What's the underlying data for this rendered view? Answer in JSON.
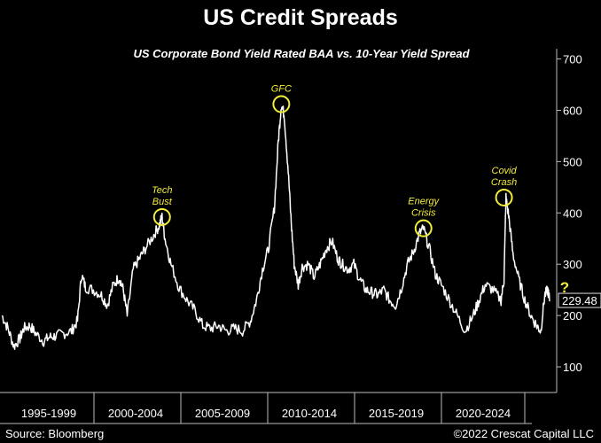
{
  "title": "US Credit Spreads",
  "subtitle": "US Corporate Bond Yield Rated BAA vs. 10-Year Yield Spread",
  "source": "Source: Bloomberg",
  "copyright": "©2022 Crescat Capital LLC",
  "chart_data": {
    "type": "line",
    "title": "US Credit Spreads",
    "subtitle": "US Corporate Bond Yield Rated BAA vs. 10-Year Yield Spread",
    "xlabel": "",
    "ylabel": "",
    "ylim": [
      50,
      720
    ],
    "xlim": [
      1994.8,
      2022.8
    ],
    "y_ticks": [
      100,
      200,
      300,
      400,
      500,
      600,
      700
    ],
    "x_period_labels": [
      "1995-1999",
      "2000-2004",
      "2005-2009",
      "2010-2014",
      "2015-2019",
      "2020-2024"
    ],
    "last_value_label": "229.48",
    "series": [
      {
        "color": "#ffffff",
        "x": [
          1994.9,
          1995.2,
          1995.5,
          1995.8,
          1996.0,
          1996.3,
          1996.6,
          1997.0,
          1997.3,
          1997.6,
          1998.0,
          1998.4,
          1998.7,
          1998.9,
          1999.1,
          1999.5,
          1999.9,
          2000.2,
          2000.5,
          2000.8,
          2001.0,
          2001.2,
          2001.5,
          2001.8,
          2002.1,
          2002.5,
          2002.8,
          2002.95,
          2003.1,
          2003.4,
          2003.8,
          2004.2,
          2004.6,
          2005.0,
          2005.4,
          2005.8,
          2006.2,
          2006.6,
          2007.0,
          2007.4,
          2007.7,
          2008.0,
          2008.3,
          2008.6,
          2008.8,
          2008.95,
          2009.1,
          2009.3,
          2009.45,
          2009.6,
          2009.8,
          2010.0,
          2010.3,
          2010.6,
          2010.9,
          2011.2,
          2011.5,
          2011.8,
          2012.0,
          2012.3,
          2012.6,
          2012.9,
          2013.2,
          2013.5,
          2013.8,
          2014.1,
          2014.4,
          2014.7,
          2015.0,
          2015.3,
          2015.6,
          2015.9,
          2016.1,
          2016.4,
          2016.7,
          2017.0,
          2017.4,
          2017.8,
          2018.2,
          2018.6,
          2018.9,
          2019.2,
          2019.6,
          2020.0,
          2020.15,
          2020.25,
          2020.4,
          2020.6,
          2020.9,
          2021.2,
          2021.5,
          2021.8,
          2022.0,
          2022.2,
          2022.35,
          2022.45
        ],
        "values": [
          200,
          175,
          140,
          155,
          175,
          180,
          165,
          150,
          158,
          160,
          165,
          170,
          190,
          280,
          255,
          250,
          240,
          220,
          260,
          275,
          250,
          200,
          290,
          310,
          330,
          355,
          375,
          392,
          350,
          300,
          255,
          230,
          210,
          180,
          175,
          180,
          170,
          175,
          170,
          190,
          230,
          290,
          330,
          410,
          540,
          612,
          590,
          480,
          380,
          300,
          260,
          295,
          300,
          275,
          300,
          330,
          345,
          310,
          300,
          290,
          300,
          270,
          250,
          245,
          240,
          250,
          230,
          220,
          255,
          300,
          325,
          360,
          370,
          330,
          280,
          260,
          230,
          200,
          170,
          200,
          230,
          260,
          250,
          230,
          270,
          430,
          390,
          320,
          270,
          230,
          200,
          180,
          170,
          240,
          250,
          229.48
        ]
      }
    ],
    "annotations": [
      {
        "text": "Tech\nBust",
        "x": 2002.95,
        "y": 392,
        "color": "#f2ec3a"
      },
      {
        "text": "GFC",
        "x": 2008.95,
        "y": 612,
        "color": "#f2ec3a"
      },
      {
        "text": "Energy\nCrisis",
        "x": 2016.1,
        "y": 370,
        "color": "#f2ec3a"
      },
      {
        "text": "Covid\nCrash",
        "x": 2020.15,
        "y": 430,
        "color": "#f2ec3a"
      },
      {
        "text": "?",
        "x": 2023.2,
        "y": 245,
        "color": "#f2ec3a"
      }
    ]
  }
}
